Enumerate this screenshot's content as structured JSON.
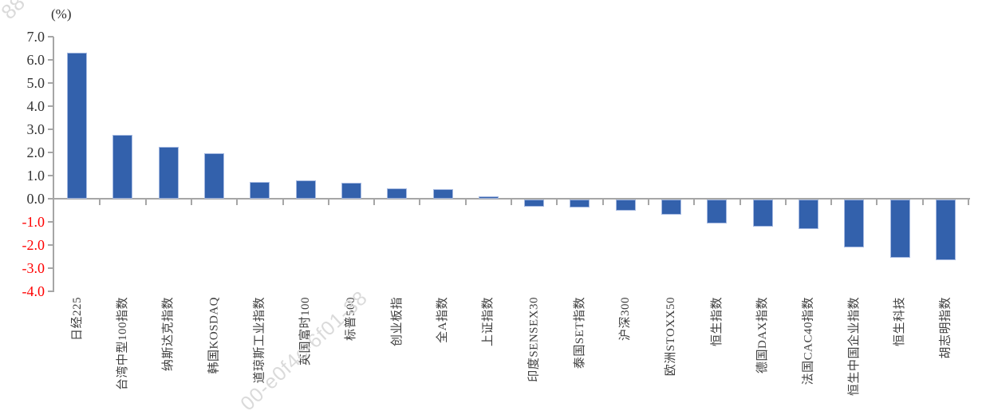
{
  "chart_data": {
    "type": "bar",
    "title": "",
    "unit_label": "(%)",
    "xlabel": "",
    "ylabel": "(%)",
    "ylim": [
      -4.0,
      7.0
    ],
    "ytick_step": 1.0,
    "grid": false,
    "legend_position": "none",
    "ytick_labels": [
      "7.0",
      "6.0",
      "5.0",
      "4.0",
      "3.0",
      "2.0",
      "1.0",
      "0.0",
      "-1.0",
      "-2.0",
      "-3.0",
      "-4.0"
    ],
    "categories": [
      "日经225",
      "台湾中型100指数",
      "纳斯达克指数",
      "韩国KOSDAQ",
      "道琼斯工业指数",
      "英国富时100",
      "标普500",
      "创业板指",
      "全A指数",
      "上证指数",
      "印度SENSEX30",
      "泰国SET指数",
      "沪深300",
      "欧洲STOXX50",
      "恒生指数",
      "德国DAX指数",
      "法国CAC40指数",
      "恒生中国企业指数",
      "恒生科技",
      "胡志明指数"
    ],
    "values": [
      6.3,
      2.76,
      2.24,
      1.95,
      0.73,
      0.78,
      0.7,
      0.46,
      0.4,
      0.1,
      -0.3,
      -0.36,
      -0.48,
      -0.67,
      -1.02,
      -1.18,
      -1.28,
      -2.07,
      -2.52,
      -2.62
    ],
    "colors": {
      "bar_fill": "#3361ac",
      "bar_border": "#a5b9e1",
      "axis": "#a6a6a6",
      "positive_tick": "#333333",
      "negative_tick": "#ff0000",
      "category_label": "#404040"
    }
  },
  "watermarks": [
    {
      "text": "88"
    },
    {
      "text": "00-e0f4c-6f01-38"
    }
  ]
}
